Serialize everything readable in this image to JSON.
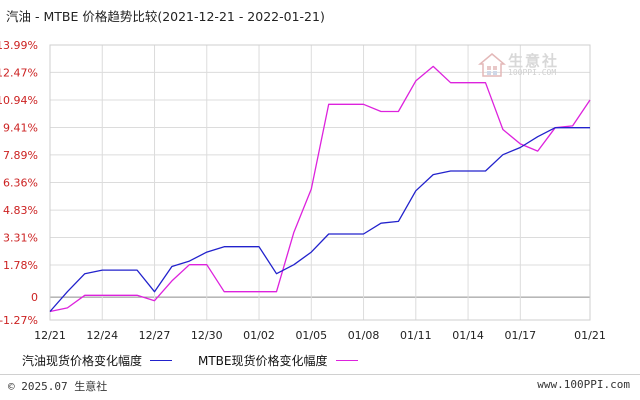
{
  "chart_data": {
    "type": "line",
    "title": "汽油 - MTBE 价格趋势比较(2021-12-21 - 2022-01-21)",
    "ylim": [
      -1.27,
      13.99
    ],
    "y_ticks": [
      "13.99%",
      "12.47%",
      "10.94%",
      "9.41%",
      "7.89%",
      "6.36%",
      "4.83%",
      "3.31%",
      "1.78%",
      "0",
      "-1.27%"
    ],
    "y_tick_values": [
      13.99,
      12.47,
      10.94,
      9.41,
      7.89,
      6.36,
      4.83,
      3.31,
      1.78,
      0,
      -1.27
    ],
    "x_ticks": [
      "12/21",
      "12/24",
      "12/27",
      "12/30",
      "01/02",
      "01/05",
      "01/08",
      "01/11",
      "01/14",
      "01/17",
      "01/21"
    ],
    "x_tick_days": [
      0,
      3,
      6,
      9,
      12,
      15,
      18,
      21,
      24,
      27,
      31
    ],
    "grid": true,
    "legend_position": "bottom",
    "series": [
      {
        "name": "汽油现货价格变化幅度",
        "color": "#2222cc",
        "x": [
          0,
          1,
          2,
          3,
          4,
          5,
          6,
          7,
          8,
          9,
          10,
          11,
          12,
          13,
          14,
          15,
          16,
          17,
          18,
          19,
          20,
          21,
          22,
          23,
          24,
          25,
          26,
          27,
          28,
          29,
          30,
          31
        ],
        "y": [
          -0.8,
          0.3,
          1.3,
          1.5,
          1.5,
          1.5,
          0.3,
          1.7,
          2.0,
          2.5,
          2.8,
          2.8,
          2.8,
          1.3,
          1.8,
          2.5,
          3.5,
          3.5,
          3.5,
          4.1,
          4.2,
          5.9,
          6.8,
          7.0,
          7.0,
          7.0,
          7.9,
          8.3,
          8.9,
          9.4,
          9.4,
          9.4
        ]
      },
      {
        "name": "MTBE现货价格变化幅度",
        "color": "#dd22dd",
        "x": [
          0,
          1,
          2,
          3,
          4,
          5,
          6,
          7,
          8,
          9,
          10,
          11,
          12,
          13,
          14,
          15,
          16,
          17,
          18,
          19,
          20,
          21,
          22,
          23,
          24,
          25,
          26,
          27,
          28,
          29,
          30,
          31
        ],
        "y": [
          -0.8,
          -0.6,
          0.1,
          0.1,
          0.1,
          0.1,
          -0.2,
          0.9,
          1.8,
          1.8,
          0.3,
          0.3,
          0.3,
          0.3,
          3.6,
          6.0,
          10.7,
          10.7,
          10.7,
          10.3,
          10.3,
          12.0,
          12.8,
          11.9,
          11.9,
          11.9,
          9.3,
          8.5,
          8.1,
          9.4,
          9.5,
          10.94
        ]
      }
    ]
  },
  "footer": {
    "copyright": "© 2025.07 生意社",
    "website": "www.100PPI.com"
  },
  "watermark": {
    "name": "生意社",
    "url": "100PPI.COM"
  }
}
